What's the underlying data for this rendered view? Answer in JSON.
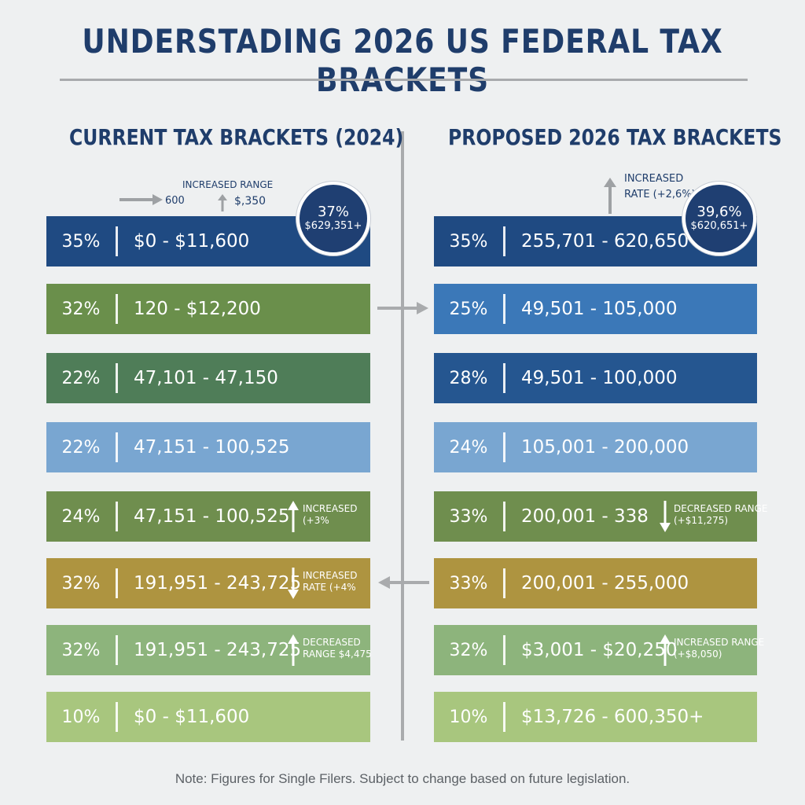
{
  "title": "UNDERSTADING 2026 US FEDERAL TAX BRACKETS",
  "left_column": {
    "title": "CURRENT TAX BRACKETS (2024)",
    "top_annotation": {
      "arrow_value": "600",
      "increased_range_label": "INCREASED RANGE",
      "increased_range_value": "$,350"
    },
    "badge": {
      "rate": "37%",
      "amount": "$629,351+"
    },
    "rows": [
      {
        "rate": "35%",
        "range": "$0 - $11,600",
        "color": "#1f4a82"
      },
      {
        "rate": "32%",
        "range": "120 - $12,200",
        "color": "#6a8f4b"
      },
      {
        "rate": "22%",
        "range": "47,101 - 47,150",
        "color": "#4f7d58"
      },
      {
        "rate": "22%",
        "range": "47,151 - 100,525",
        "color": "#79a6d1"
      },
      {
        "rate": "24%",
        "range": "47,151 - 100,525",
        "color": "#6f8e4e",
        "note_line1": "INCREASED",
        "note_line2": "(+3%",
        "note_dir": "up"
      },
      {
        "rate": "32%",
        "range": "191,951 - 243,725",
        "color": "#ae9440",
        "note_line1": "INCREASED",
        "note_line2": "RATE (+4%",
        "note_dir": "down"
      },
      {
        "rate": "32%",
        "range": "191,951 - 243,725",
        "color": "#8db47c",
        "note_line1": "DECREASED",
        "note_line2": "RANGE $4,475",
        "note_dir": "up"
      },
      {
        "rate": "10%",
        "range": "$0 - $11,600",
        "color": "#a8c67e"
      }
    ]
  },
  "right_column": {
    "title": "PROPOSED 2026 TAX BRACKETS",
    "top_annotation": {
      "line1": "INCREASED",
      "line2": "RATE (+2,6%)"
    },
    "badge": {
      "rate": "39,6%",
      "amount": "$620,651+"
    },
    "rows": [
      {
        "rate": "35%",
        "range": "255,701 - 620,650+",
        "color": "#1f4a82"
      },
      {
        "rate": "25%",
        "range": "49,501 - 105,000",
        "color": "#3b78b8"
      },
      {
        "rate": "28%",
        "range": "49,501 - 100,000",
        "color": "#255690"
      },
      {
        "rate": "24%",
        "range": "105,001 - 200,000",
        "color": "#79a6d1"
      },
      {
        "rate": "33%",
        "range": "200,001 - 338",
        "color": "#6f8e4e",
        "note_line1": "DECREASED RANGE",
        "note_line2": "(+$11,275)",
        "note_dir": "down"
      },
      {
        "rate": "33%",
        "range": "200,001 - 255,000",
        "color": "#ae9440"
      },
      {
        "rate": "32%",
        "range": "$3,001 - $20,250",
        "color": "#8db47c",
        "note_line1": "INCREASED RANGE",
        "note_line2": "(+$8,050)",
        "note_dir": "up"
      },
      {
        "rate": "10%",
        "range": "$13,726 - 600,350+",
        "color": "#a8c67e"
      }
    ]
  },
  "footer": "Note: Figures for Single Filers. Subject to change based on future legislation."
}
